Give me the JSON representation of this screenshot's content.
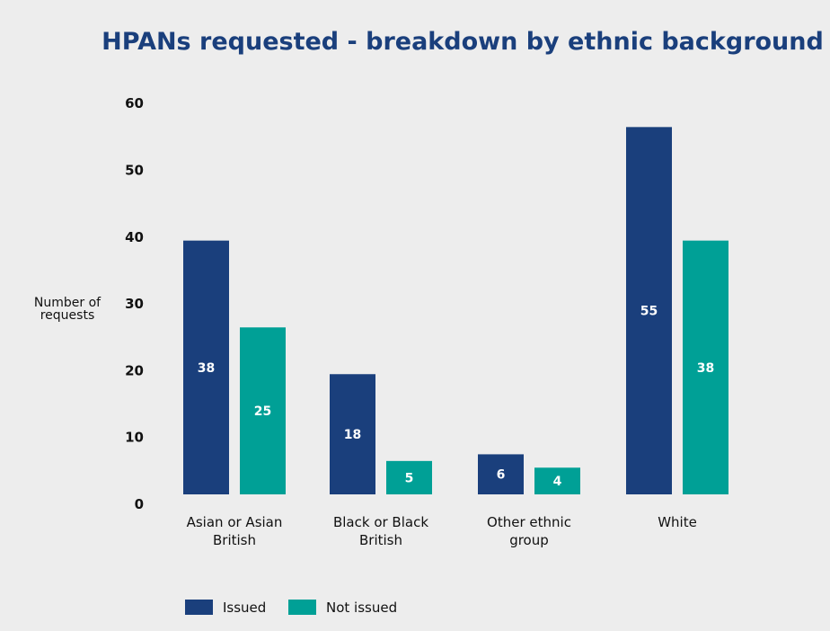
{
  "chart_data": {
    "type": "bar",
    "title": "HPANs requested  - breakdown by ethnic background",
    "ylabel": [
      "Number of",
      "requests"
    ],
    "xlabel": "",
    "ylim": [
      0,
      60
    ],
    "yticks": [
      0,
      10,
      20,
      30,
      40,
      50,
      60
    ],
    "grid": false,
    "legend_position": "bottom-left",
    "categories": [
      [
        "Asian or Asian",
        "British"
      ],
      [
        "Black or Black",
        "British"
      ],
      [
        "Other ethnic",
        "group"
      ],
      [
        "White"
      ]
    ],
    "series": [
      {
        "name": "Issued",
        "color": "#1a3f7c",
        "values": [
          38,
          18,
          6,
          55
        ]
      },
      {
        "name": "Not issued",
        "color": "#00a096",
        "values": [
          25,
          5,
          4,
          38
        ]
      }
    ],
    "title_color": "#1a3f7c"
  }
}
